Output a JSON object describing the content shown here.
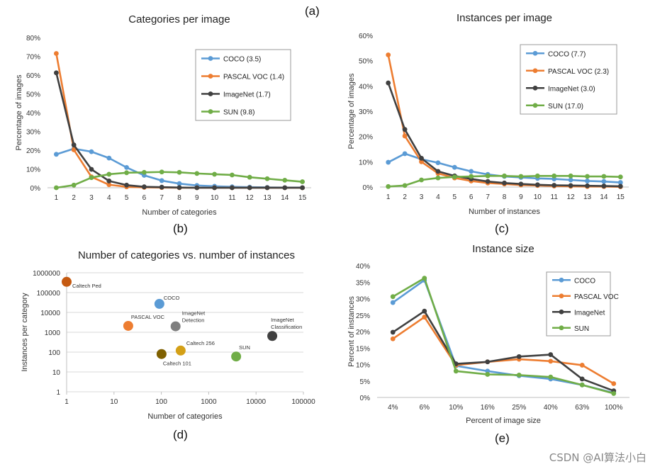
{
  "panel_labels": {
    "a": "(a)",
    "b": "(b)",
    "c": "(c)",
    "d": "(d)",
    "e": "(e)"
  },
  "watermark": "CSDN @AI算法小白",
  "chart_data": [
    {
      "id": "b",
      "type": "line",
      "title": "Categories per image",
      "xlabel": "Number of categories",
      "ylabel": "Percentage of images",
      "x": [
        1,
        2,
        3,
        4,
        5,
        6,
        7,
        8,
        9,
        10,
        11,
        12,
        13,
        14,
        15
      ],
      "ylim": [
        0,
        80
      ],
      "yticks": [
        "0%",
        "10%",
        "20%",
        "30%",
        "40%",
        "50%",
        "60%",
        "70%",
        "80%"
      ],
      "legend_position": "top-right",
      "series": [
        {
          "name": "COCO (3.5)",
          "color": "#5B9BD5",
          "values": [
            17.8,
            20.8,
            19.2,
            15.8,
            10.8,
            6.6,
            3.8,
            2.2,
            1.2,
            0.8,
            0.5,
            0.3,
            0.2,
            0.1,
            0.1
          ]
        },
        {
          "name": "PASCAL VOC (1.4)",
          "color": "#ED7D31",
          "values": [
            71.5,
            20.2,
            5.8,
            1.6,
            0.5,
            0.2,
            0.1,
            0,
            0,
            0,
            0,
            0,
            0,
            0,
            0
          ]
        },
        {
          "name": "ImageNet (1.7)",
          "color": "#404040",
          "values": [
            61.2,
            22.8,
            9.8,
            3.6,
            1.4,
            0.5,
            0.3,
            0.1,
            0,
            0,
            0,
            0,
            0,
            0,
            0
          ]
        },
        {
          "name": "SUN (9.8)",
          "color": "#70AD47",
          "values": [
            0,
            1.4,
            5.4,
            7.2,
            8.0,
            8.2,
            8.4,
            8.2,
            7.6,
            7.2,
            6.8,
            5.6,
            4.8,
            4.0,
            3.2
          ]
        }
      ]
    },
    {
      "id": "c",
      "type": "line",
      "title": "Instances per image",
      "xlabel": "Number of instances",
      "ylabel": "Percentage of images",
      "x": [
        1,
        2,
        3,
        4,
        5,
        6,
        7,
        8,
        9,
        10,
        11,
        12,
        13,
        14,
        15
      ],
      "ylim": [
        0,
        60
      ],
      "yticks": [
        "0%",
        "10%",
        "20%",
        "30%",
        "40%",
        "50%",
        "60%"
      ],
      "legend_position": "top-right",
      "series": [
        {
          "name": "COCO (7.7)",
          "color": "#5B9BD5",
          "values": [
            9.8,
            13.2,
            11.0,
            9.6,
            7.8,
            6.2,
            5.0,
            4.2,
            3.8,
            3.4,
            3.2,
            2.8,
            2.4,
            2.2,
            1.8
          ]
        },
        {
          "name": "PASCAL VOC (2.3)",
          "color": "#ED7D31",
          "values": [
            52.3,
            20.2,
            10.0,
            5.4,
            3.6,
            2.4,
            1.6,
            1.2,
            0.8,
            0.6,
            0.4,
            0.3,
            0.2,
            0.2,
            0.1
          ]
        },
        {
          "name": "ImageNet (3.0)",
          "color": "#404040",
          "values": [
            41.2,
            22.8,
            11.4,
            6.2,
            4.4,
            3.2,
            2.2,
            1.6,
            1.2,
            0.9,
            0.7,
            0.6,
            0.5,
            0.4,
            0.3
          ]
        },
        {
          "name": "SUN (17.0)",
          "color": "#70AD47",
          "values": [
            0.2,
            0.6,
            2.8,
            3.6,
            4.0,
            4.2,
            4.4,
            4.4,
            4.2,
            4.4,
            4.4,
            4.4,
            4.2,
            4.2,
            4.0
          ]
        }
      ]
    },
    {
      "id": "d",
      "type": "scatter",
      "title": "Number of categories vs. number of instances",
      "xlabel": "Number of categories",
      "ylabel": "Instances per category",
      "xscale": "log",
      "yscale": "log",
      "xticks": [
        "1",
        "10",
        "100",
        "1000",
        "10000",
        "100000"
      ],
      "yticks": [
        "1",
        "10",
        "100",
        "1000",
        "10000",
        "100000",
        "1000000"
      ],
      "xlim": [
        1,
        100000
      ],
      "ylim": [
        1,
        1000000
      ],
      "points": [
        {
          "label": "Caltech Ped",
          "x": 1,
          "y": 350000,
          "color": "#C55A11"
        },
        {
          "label": "COCO",
          "x": 91,
          "y": 27000,
          "color": "#5B9BD5"
        },
        {
          "label": "PASCAL VOC",
          "x": 20,
          "y": 2100,
          "color": "#ED7D31"
        },
        {
          "label": "ImageNet Detection",
          "x": 200,
          "y": 2000,
          "color": "#7F7F7F"
        },
        {
          "label": "Caltech 256",
          "x": 256,
          "y": 120,
          "color": "#D4A017"
        },
        {
          "label": "Caltech 101",
          "x": 101,
          "y": 80,
          "color": "#7F6000"
        },
        {
          "label": "SUN",
          "x": 3800,
          "y": 60,
          "color": "#70AD47"
        },
        {
          "label": "ImageNet Classification",
          "x": 22000,
          "y": 650,
          "color": "#404040"
        }
      ]
    },
    {
      "id": "e",
      "type": "line",
      "title": "Instance size",
      "xlabel": "Percent of image size",
      "ylabel": "Percent of instances",
      "categories": [
        "4%",
        "6%",
        "10%",
        "16%",
        "25%",
        "40%",
        "63%",
        "100%"
      ],
      "ylim": [
        0,
        40
      ],
      "yticks": [
        "0%",
        "5%",
        "10%",
        "15%",
        "20%",
        "25%",
        "30%",
        "35%",
        "40%"
      ],
      "legend_position": "top-right",
      "series": [
        {
          "name": "COCO",
          "color": "#5B9BD5",
          "values": [
            28.8,
            35.6,
            9.6,
            8.0,
            6.6,
            5.6,
            3.8,
            1.4
          ]
        },
        {
          "name": "PASCAL VOC",
          "color": "#ED7D31",
          "values": [
            17.8,
            24.4,
            9.8,
            10.8,
            11.6,
            11.0,
            9.8,
            4.2
          ]
        },
        {
          "name": "ImageNet",
          "color": "#404040",
          "values": [
            19.8,
            26.2,
            10.2,
            10.8,
            12.4,
            13.0,
            5.6,
            2.0
          ]
        },
        {
          "name": "SUN",
          "color": "#70AD47",
          "values": [
            30.6,
            36.2,
            8.0,
            7.0,
            6.8,
            6.2,
            3.8,
            1.2
          ]
        }
      ]
    }
  ]
}
